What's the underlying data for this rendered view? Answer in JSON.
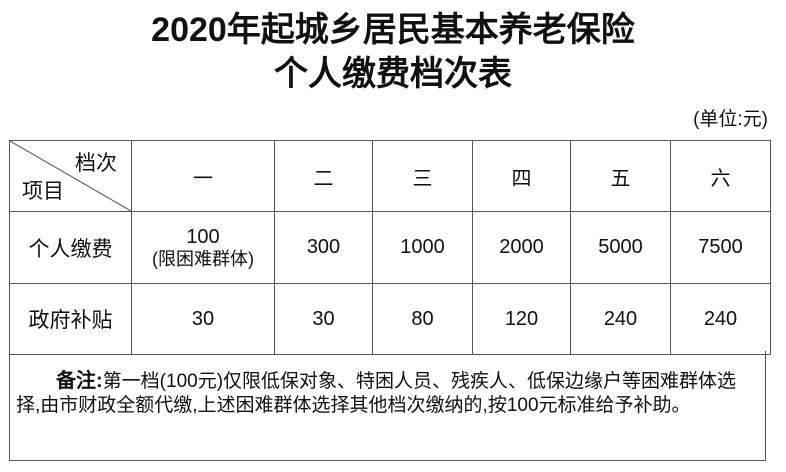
{
  "title": {
    "line1": "2020年起城乡居民基本养老保险",
    "line2": "个人缴费档次表"
  },
  "unit": "(单位:元)",
  "table": {
    "corner": {
      "top_right": "档次",
      "bottom_left": "项目"
    },
    "columns": [
      "一",
      "二",
      "三",
      "四",
      "五",
      "六"
    ],
    "rows": [
      {
        "label": "个人缴费",
        "values": [
          "100",
          "300",
          "1000",
          "2000",
          "5000",
          "7500"
        ],
        "first_note": "(限困难群体)"
      },
      {
        "label": "政府补贴",
        "values": [
          "30",
          "30",
          "80",
          "120",
          "240",
          "240"
        ]
      }
    ]
  },
  "note": {
    "label": "备注:",
    "text": "第一档(100元)仅限低保对象、特困人员、残疾人、低保边缘户等困难群体选择,由市财政全额代缴,上述困难群体选择其他档次缴纳的,按100元标准给予补助。"
  }
}
